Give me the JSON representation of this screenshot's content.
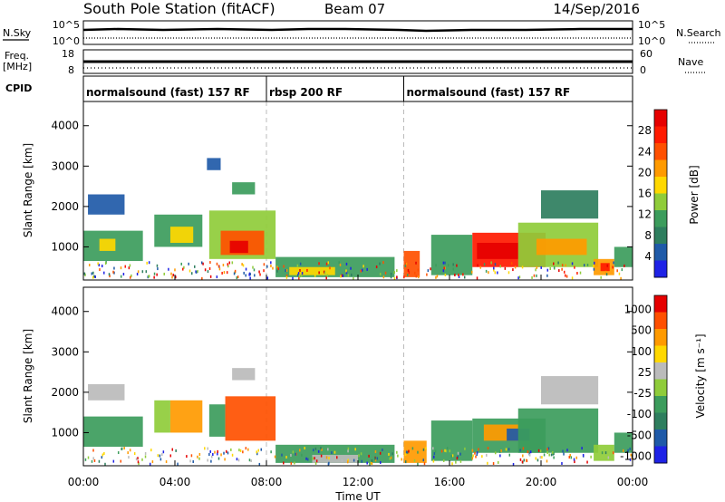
{
  "header": {
    "title": "South Pole Station (fitACF)",
    "beam": "Beam 07",
    "date": "14/Sep/2016"
  },
  "nsky_panel": {
    "left_label": "N.Sky",
    "right_label": "N.Search",
    "left_ticks": [
      "10^5",
      "10^0"
    ],
    "right_ticks": [
      "10^5",
      "10^0"
    ]
  },
  "freq_panel": {
    "left_label_1": "Freq.",
    "left_label_2": "[MHz]",
    "right_label": "Nave",
    "left_ticks": [
      "18",
      "8"
    ],
    "right_ticks": [
      "60",
      "0"
    ]
  },
  "cpid_panel": {
    "label": "CPID",
    "segments": [
      {
        "label": "normalsound (fast) 157 RF",
        "start_hour": 0
      },
      {
        "label": "rbsp 200 RF",
        "start_hour": 8
      },
      {
        "label": "normalsound (fast) 157 RF",
        "start_hour": 14
      }
    ]
  },
  "chart_data": [
    {
      "type": "heatmap",
      "name": "power",
      "ylabel": "Slant Range [km]",
      "ylim": [
        180,
        4600
      ],
      "yticks": [
        1000,
        2000,
        3000,
        4000
      ],
      "xlim": [
        0,
        24
      ],
      "colorbar_label": "Power [dB]",
      "colorbar_ticks": [
        "4",
        "8",
        "12",
        "16",
        "20",
        "24",
        "28"
      ],
      "colors": [
        "#1e22e6",
        "#1f5aa8",
        "#2e7e5e",
        "#3c9c5c",
        "#8fcc3a",
        "#ffd800",
        "#ff9a00",
        "#ff5000",
        "#ff1a00",
        "#e60000"
      ],
      "cells": [
        {
          "t0": 0.0,
          "t1": 2.6,
          "r0": 650,
          "r1": 1400,
          "c": 3
        },
        {
          "t0": 0.2,
          "t1": 1.8,
          "r0": 1800,
          "r1": 2300,
          "c": 1
        },
        {
          "t0": 0.7,
          "t1": 1.4,
          "r0": 900,
          "r1": 1200,
          "c": 5
        },
        {
          "t0": 3.1,
          "t1": 5.2,
          "r0": 1000,
          "r1": 1800,
          "c": 3
        },
        {
          "t0": 3.8,
          "t1": 4.8,
          "r0": 1100,
          "r1": 1500,
          "c": 5
        },
        {
          "t0": 5.4,
          "t1": 6.0,
          "r0": 2900,
          "r1": 3200,
          "c": 1
        },
        {
          "t0": 5.5,
          "t1": 8.4,
          "r0": 700,
          "r1": 1900,
          "c": 4
        },
        {
          "t0": 6.0,
          "t1": 7.9,
          "r0": 800,
          "r1": 1400,
          "c": 7
        },
        {
          "t0": 6.4,
          "t1": 7.2,
          "r0": 850,
          "r1": 1150,
          "c": 9
        },
        {
          "t0": 6.5,
          "t1": 7.5,
          "r0": 2300,
          "r1": 2600,
          "c": 3
        },
        {
          "t0": 8.4,
          "t1": 13.6,
          "r0": 250,
          "r1": 750,
          "c": 3
        },
        {
          "t0": 9.0,
          "t1": 11.0,
          "r0": 300,
          "r1": 500,
          "c": 5
        },
        {
          "t0": 14.0,
          "t1": 14.7,
          "r0": 250,
          "r1": 900,
          "c": 7
        },
        {
          "t0": 15.2,
          "t1": 17.0,
          "r0": 300,
          "r1": 1300,
          "c": 3
        },
        {
          "t0": 17.0,
          "t1": 20.2,
          "r0": 500,
          "r1": 1350,
          "c": 8
        },
        {
          "t0": 17.2,
          "t1": 19.0,
          "r0": 700,
          "r1": 1100,
          "c": 9
        },
        {
          "t0": 19.0,
          "t1": 22.5,
          "r0": 500,
          "r1": 1600,
          "c": 4
        },
        {
          "t0": 19.8,
          "t1": 22.0,
          "r0": 800,
          "r1": 1200,
          "c": 6
        },
        {
          "t0": 20.0,
          "t1": 22.5,
          "r0": 1700,
          "r1": 2400,
          "c": 2
        },
        {
          "t0": 22.3,
          "t1": 23.2,
          "r0": 300,
          "r1": 700,
          "c": 6
        },
        {
          "t0": 22.6,
          "t1": 23.0,
          "r0": 400,
          "r1": 600,
          "c": 8
        },
        {
          "t0": 23.2,
          "t1": 24.0,
          "r0": 500,
          "r1": 1000,
          "c": 3
        }
      ]
    },
    {
      "type": "heatmap",
      "name": "velocity",
      "xlabel": "Time UT",
      "ylabel": "Slant Range [km]",
      "ylim": [
        180,
        4600
      ],
      "yticks": [
        1000,
        2000,
        3000,
        4000
      ],
      "xlim": [
        0,
        24
      ],
      "xticks": [
        "00:00",
        "04:00",
        "08:00",
        "12:00",
        "16:00",
        "20:00",
        "00:00"
      ],
      "colorbar_label": "Velocity [m s⁻¹]",
      "colorbar_ticks": [
        "1000",
        "500",
        "100",
        "25",
        "-25",
        "-100",
        "-500",
        "-1000"
      ],
      "colors": [
        "#1e22e6",
        "#1f5aa8",
        "#2e7e5e",
        "#3c9c5c",
        "#8fcc3a",
        "#bbbbbb",
        "#ffd800",
        "#ff9a00",
        "#ff5000",
        "#e60000"
      ],
      "cells": [
        {
          "t0": 0.0,
          "t1": 2.6,
          "r0": 650,
          "r1": 1400,
          "c": 3
        },
        {
          "t0": 0.2,
          "t1": 1.8,
          "r0": 1800,
          "r1": 2200,
          "c": 5
        },
        {
          "t0": 3.1,
          "t1": 3.8,
          "r0": 1000,
          "r1": 1800,
          "c": 4
        },
        {
          "t0": 3.8,
          "t1": 5.2,
          "r0": 1000,
          "r1": 1800,
          "c": 7
        },
        {
          "t0": 5.5,
          "t1": 6.2,
          "r0": 900,
          "r1": 1700,
          "c": 3
        },
        {
          "t0": 6.2,
          "t1": 8.4,
          "r0": 800,
          "r1": 1900,
          "c": 8
        },
        {
          "t0": 6.5,
          "t1": 7.5,
          "r0": 2300,
          "r1": 2600,
          "c": 5
        },
        {
          "t0": 8.4,
          "t1": 13.6,
          "r0": 250,
          "r1": 700,
          "c": 3
        },
        {
          "t0": 10.0,
          "t1": 12.0,
          "r0": 250,
          "r1": 450,
          "c": 5
        },
        {
          "t0": 14.0,
          "t1": 15.0,
          "r0": 250,
          "r1": 800,
          "c": 7
        },
        {
          "t0": 15.2,
          "t1": 17.0,
          "r0": 300,
          "r1": 1300,
          "c": 3
        },
        {
          "t0": 17.0,
          "t1": 20.2,
          "r0": 500,
          "r1": 1350,
          "c": 3
        },
        {
          "t0": 17.5,
          "t1": 19.0,
          "r0": 800,
          "r1": 1200,
          "c": 7
        },
        {
          "t0": 18.5,
          "t1": 19.5,
          "r0": 800,
          "r1": 1100,
          "c": 1
        },
        {
          "t0": 19.0,
          "t1": 22.5,
          "r0": 500,
          "r1": 1600,
          "c": 3
        },
        {
          "t0": 20.0,
          "t1": 22.5,
          "r0": 1700,
          "r1": 2400,
          "c": 5
        },
        {
          "t0": 22.3,
          "t1": 23.2,
          "r0": 300,
          "r1": 700,
          "c": 4
        },
        {
          "t0": 23.2,
          "t1": 24.0,
          "r0": 500,
          "r1": 1000,
          "c": 3
        }
      ]
    }
  ]
}
